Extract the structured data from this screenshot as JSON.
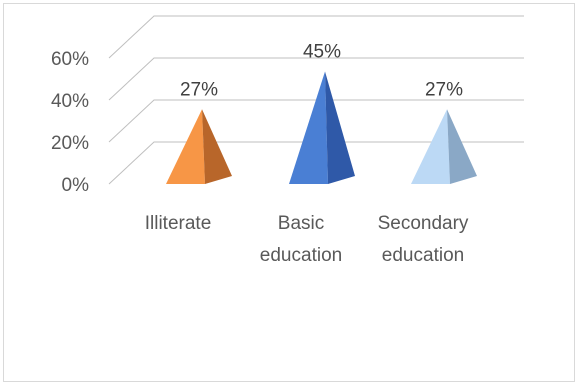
{
  "chart_data": {
    "type": "bar",
    "style": "3d-pyramid",
    "categories": [
      [
        "Illiterate"
      ],
      [
        "Basic",
        "education"
      ],
      [
        "Secondary",
        "education"
      ]
    ],
    "values": [
      27,
      45,
      27
    ],
    "data_labels": [
      "27%",
      "45%",
      "27%"
    ],
    "ylim": [
      0,
      60
    ],
    "yticks": [
      0,
      20,
      40,
      60
    ],
    "ytick_labels": [
      "0%",
      "20%",
      "40%",
      "60%"
    ],
    "grid": true,
    "legend": "none",
    "title": "",
    "colors": [
      {
        "light": "#f79646",
        "dark": "#b8662a",
        "mid": "#e07d36"
      },
      {
        "light": "#4a7fd4",
        "dark": "#2f59a8",
        "mid": "#3d6cc0"
      },
      {
        "light": "#bcd9f5",
        "dark": "#8aa8c6",
        "mid": "#a5c4e3"
      }
    ]
  }
}
